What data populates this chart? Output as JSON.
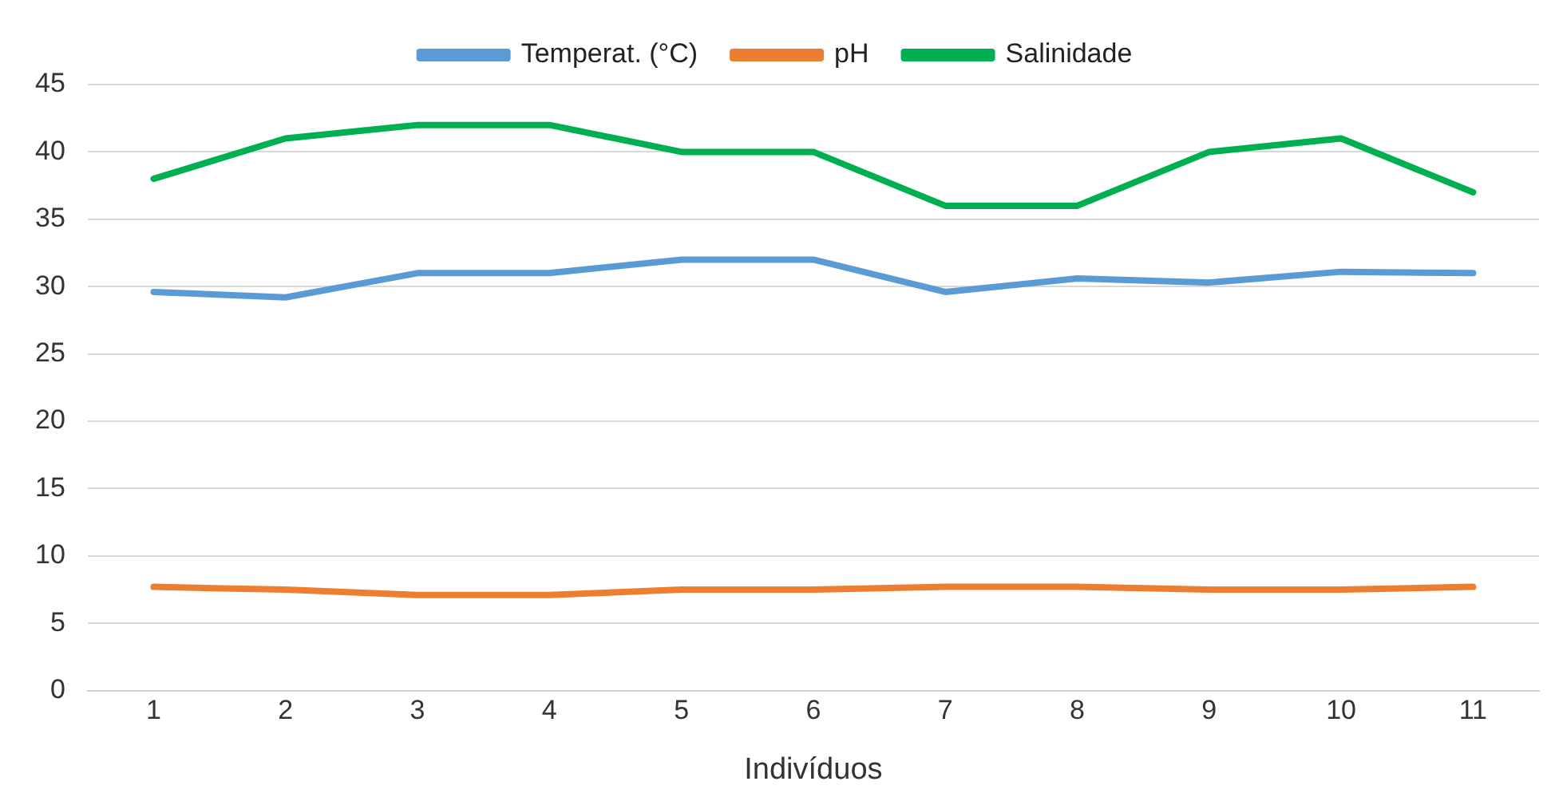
{
  "chart_data": {
    "type": "line",
    "xlabel": "Indivíduos",
    "categories": [
      "1",
      "2",
      "3",
      "4",
      "5",
      "6",
      "7",
      "8",
      "9",
      "10",
      "11"
    ],
    "series": [
      {
        "name": "Temperat. (°C)",
        "color": "#5b9bd5",
        "values": [
          29.6,
          29.2,
          31,
          31,
          32,
          32,
          29.6,
          30.6,
          30.3,
          31.1,
          31
        ]
      },
      {
        "name": "pH",
        "color": "#ed7d31",
        "values": [
          7.7,
          7.5,
          7.1,
          7.1,
          7.5,
          7.5,
          7.7,
          7.7,
          7.5,
          7.5,
          7.7
        ]
      },
      {
        "name": "Salinidade",
        "color": "#00b050",
        "values": [
          38,
          41,
          42,
          42,
          40,
          40,
          36,
          36,
          40,
          41,
          37
        ]
      }
    ],
    "ylim": [
      0,
      45
    ],
    "yticks": [
      0,
      5,
      10,
      15,
      20,
      25,
      30,
      35,
      40,
      45
    ],
    "grid": "y",
    "legend": "top",
    "marker": "none",
    "line_style": "solid"
  }
}
